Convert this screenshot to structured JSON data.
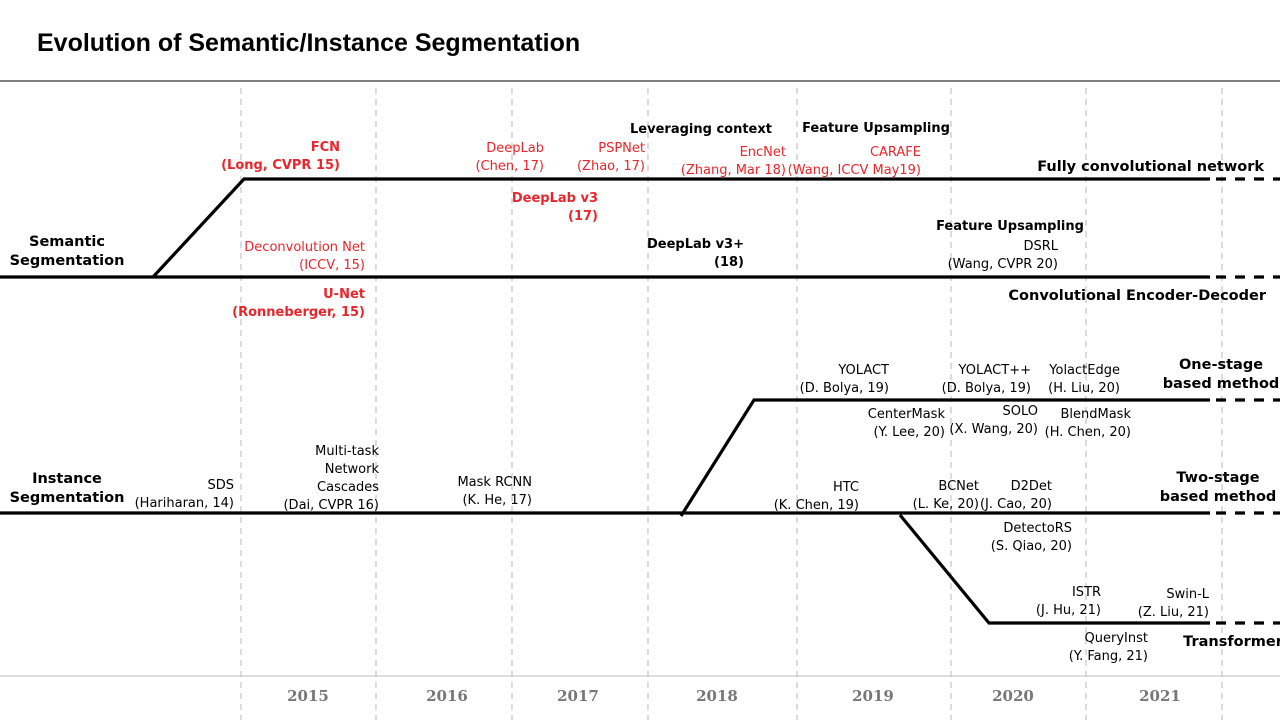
{
  "title": "Evolution of Semantic/Instance Segmentation",
  "colors": {
    "red": "#e8262b",
    "black": "#000000",
    "year": "#777777",
    "grid": "#c8c8c8"
  },
  "sections": {
    "semantic": [
      "Semantic",
      "Segmentation"
    ],
    "instance": [
      "Instance",
      "Segmentation"
    ]
  },
  "branches": {
    "fcn": [
      "Fully convolutional network"
    ],
    "encdec": [
      "Convolutional Encoder-Decoder"
    ],
    "onestage": [
      "One-stage",
      "based method"
    ],
    "twostage": [
      "Two-stage",
      "based method"
    ],
    "transformer": [
      "Transformer"
    ]
  },
  "years": [
    "2015",
    "2016",
    "2017",
    "2018",
    "2019",
    "2020",
    "2021"
  ],
  "annotations": {
    "fcn": [
      "FCN",
      "(Long, CVPR 15)"
    ],
    "deeplab": [
      "DeepLab",
      "(Chen, 17)"
    ],
    "pspnet": [
      "PSPNet",
      "(Zhao, 17)"
    ],
    "leveraging": [
      "Leveraging context"
    ],
    "encnet": [
      "EncNet",
      "(Zhang, Mar 18)"
    ],
    "feature_up1": [
      "Feature Upsampling"
    ],
    "carafe": [
      "CARAFE",
      "(Wang, ICCV May19)"
    ],
    "deeplabv3": [
      "DeepLab v3",
      "(17)"
    ],
    "deconvnet": [
      "Deconvolution Net",
      "(ICCV, 15)"
    ],
    "deeplabv3p": [
      "DeepLab v3+",
      "(18)"
    ],
    "feature_up2": [
      "Feature Upsampling"
    ],
    "dsrl": [
      "DSRL",
      "(Wang, CVPR 20)"
    ],
    "unet": [
      "U-Net",
      "(Ronneberger, 15)"
    ],
    "yolact": [
      "YOLACT",
      "(D. Bolya, 19)"
    ],
    "yolactpp": [
      "YOLACT++",
      "(D. Bolya, 19)"
    ],
    "yolactedge": [
      "YolactEdge",
      "(H. Liu, 20)"
    ],
    "centermask": [
      "CenterMask",
      "(Y. Lee, 20)"
    ],
    "solo": [
      "SOLO",
      "(X. Wang, 20)"
    ],
    "blendmask": [
      "BlendMask",
      "(H. Chen, 20)"
    ],
    "multitask": [
      "Multi-task",
      "Network",
      "Cascades",
      "(Dai, CVPR 16)"
    ],
    "sds": [
      "SDS",
      "(Hariharan, 14)"
    ],
    "maskrcnn": [
      "Mask RCNN",
      "(K. He, 17)"
    ],
    "htc": [
      "HTC",
      "(K. Chen, 19)"
    ],
    "bcnet": [
      "BCNet",
      "(L. Ke, 20)"
    ],
    "d2det": [
      "D2Det",
      "(J. Cao, 20)"
    ],
    "detectors": [
      "DetectoRS",
      "(S. Qiao, 20)"
    ],
    "istr": [
      "ISTR",
      "(J. Hu, 21)"
    ],
    "swinl": [
      "Swin-L",
      "(Z. Liu, 21)"
    ],
    "queryinst": [
      "QueryInst",
      "(Y. Fang, 21)"
    ]
  }
}
